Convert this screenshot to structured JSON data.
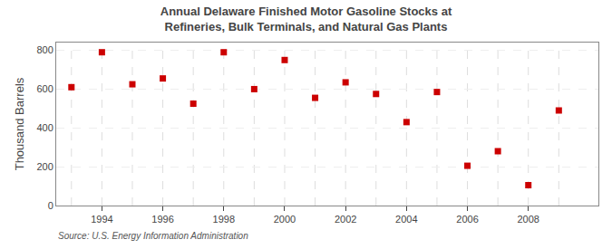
{
  "chart_data": {
    "type": "scatter",
    "title": "Annual Delaware Finished Motor Gasoline Stocks at Refineries, Bulk Terminals, and Natural Gas Plants",
    "y_label": "Thousand Barrels",
    "annotations": [
      "Source: U.S. Energy Information Administration"
    ],
    "x": [
      1993,
      1994,
      1995,
      1996,
      1997,
      1998,
      1999,
      2000,
      2001,
      2002,
      2003,
      2004,
      2005,
      2006,
      2007,
      2008,
      2009
    ],
    "values": [
      610,
      790,
      625,
      655,
      525,
      790,
      600,
      750,
      555,
      635,
      575,
      430,
      585,
      205,
      280,
      105,
      490
    ],
    "color": "#cc0000",
    "marker": "square",
    "xlim": [
      1992.5,
      2010.3
    ],
    "xticks": [
      1994,
      1996,
      1998,
      2000,
      2002,
      2004,
      2006,
      2008
    ],
    "ylim": [
      0,
      840
    ],
    "yticks": [
      0,
      200,
      400,
      600,
      800
    ],
    "grid": true
  }
}
